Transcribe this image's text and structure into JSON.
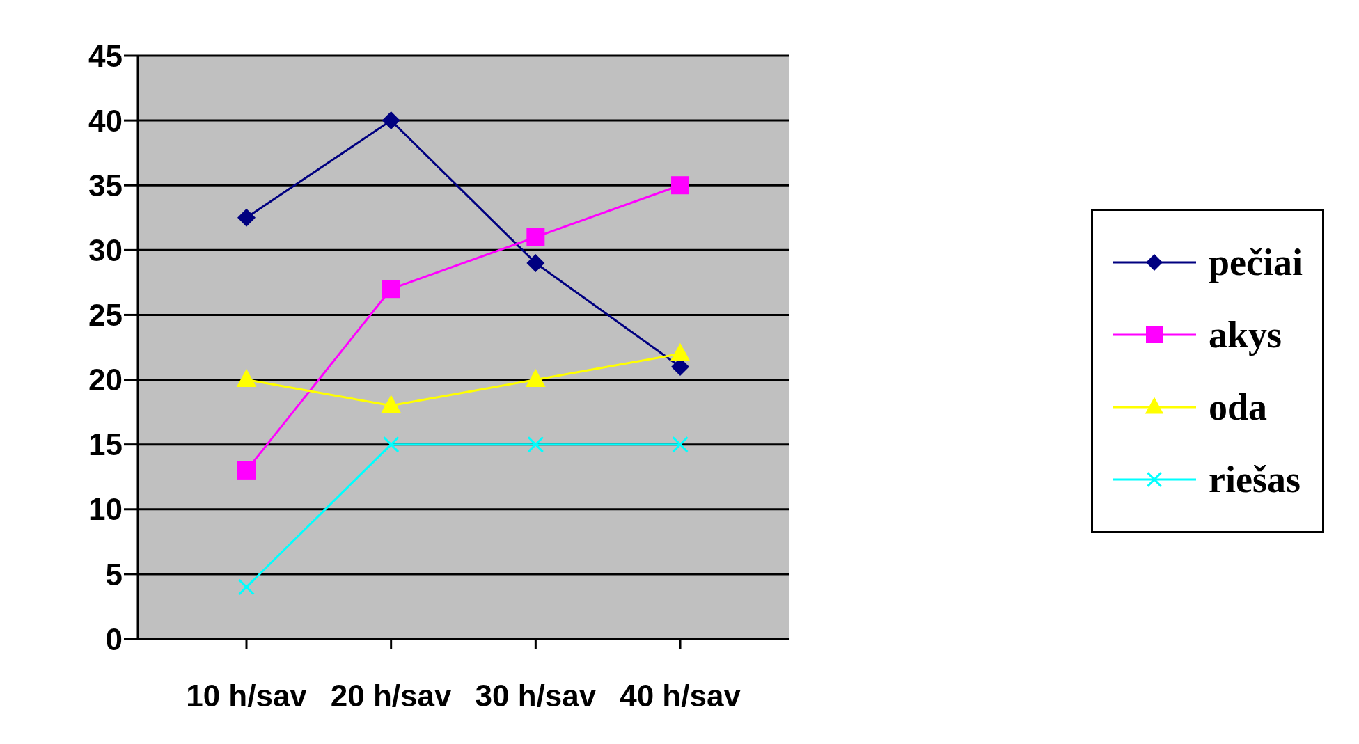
{
  "chart_data": {
    "type": "line",
    "categories": [
      "10 h/sav",
      "20 h/sav",
      "30 h/sav",
      "40 h/sav"
    ],
    "series": [
      {
        "name": "pečiai",
        "color": "#000080",
        "marker": "diamond",
        "values": [
          32.5,
          40,
          29,
          21
        ]
      },
      {
        "name": "akys",
        "color": "#ff00ff",
        "marker": "square",
        "values": [
          13,
          27,
          31,
          35
        ]
      },
      {
        "name": "oda",
        "color": "#ffff00",
        "marker": "triangle",
        "values": [
          20,
          18,
          20,
          22
        ]
      },
      {
        "name": "riešas",
        "color": "#00ffff",
        "marker": "cross",
        "values": [
          4,
          15,
          15,
          15
        ]
      }
    ],
    "ylim": [
      0,
      45
    ],
    "yticks": [
      0,
      5,
      10,
      15,
      20,
      25,
      30,
      35,
      40,
      45
    ],
    "grid": "y",
    "legend": "right",
    "line_style": "solid"
  }
}
